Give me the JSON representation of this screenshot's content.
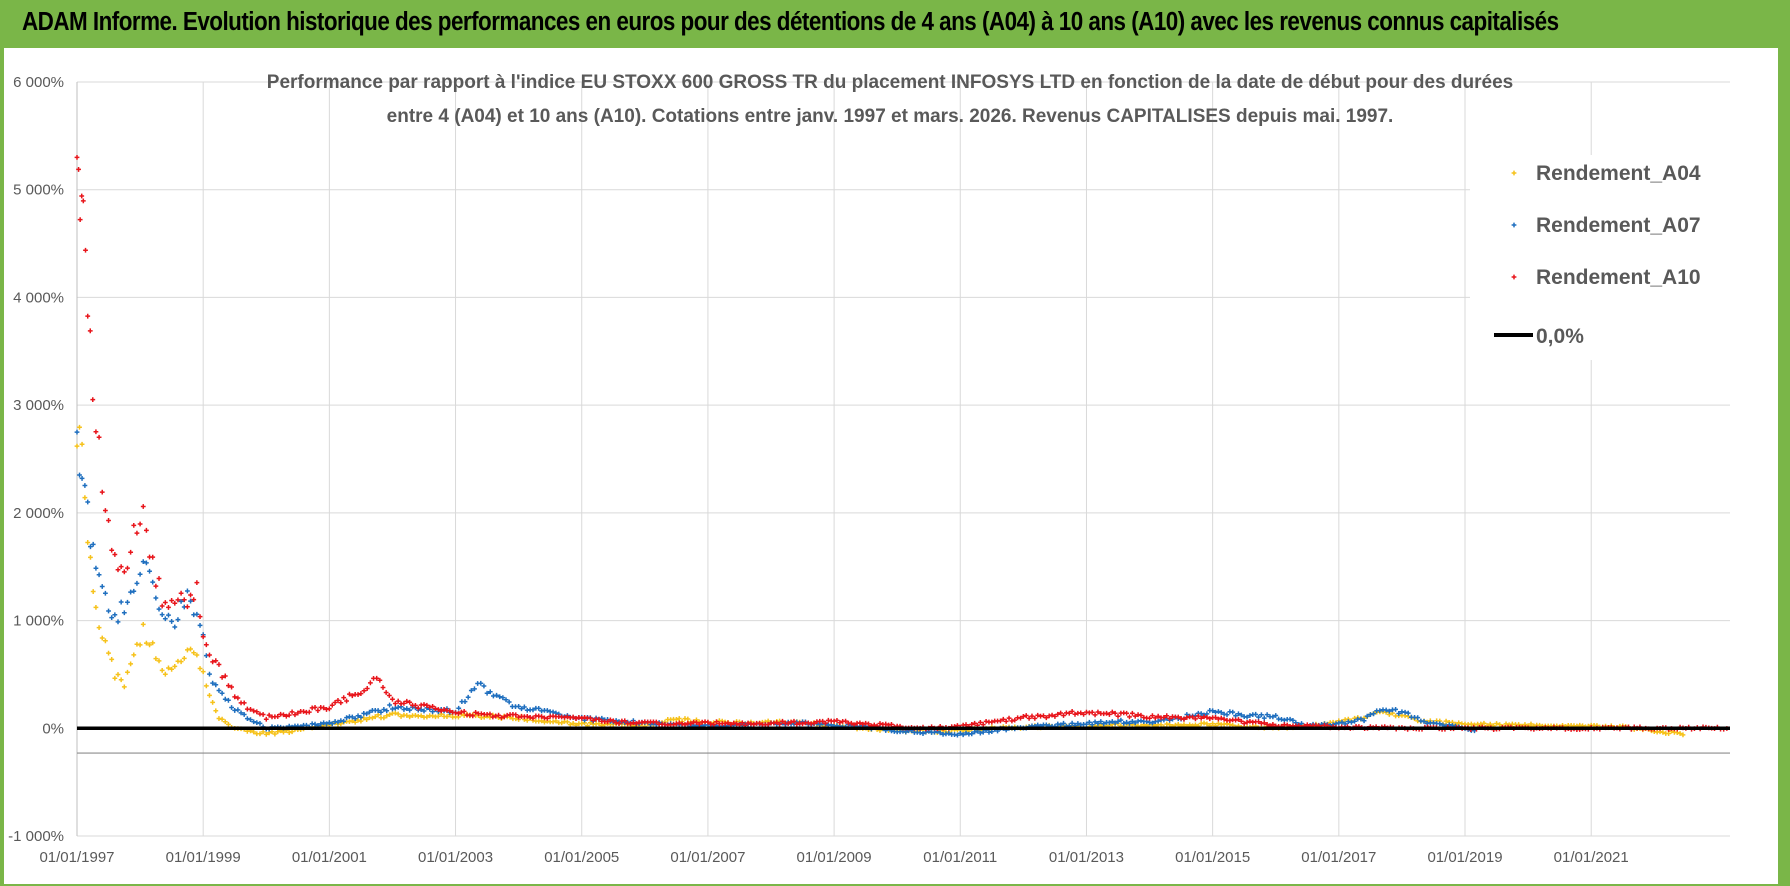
{
  "header": {
    "title": "ADAM Informe. Evolution historique des performances en euros pour des détentions de 4 ans (A04) à 10 ans (A10) avec les revenus connus capitalisés"
  },
  "colors": {
    "header_bg": "#7ab648",
    "a04": "#f6c21b",
    "a07": "#1f6fbf",
    "a10": "#e8151b",
    "zero": "#000000",
    "grid": "#d9d9d9"
  },
  "chart_data": {
    "type": "scatter",
    "title_line1": "Performance par rapport à l'indice EU STOXX 600 GROSS TR  du placement INFOSYS LTD en fonction de la date de début pour des durées",
    "title_line2": "entre 4 (A04) et 10 ans (A10).  Cotations entre janv. 1997 et mars. 2026.  Revenus CAPITALISES  depuis mai. 1997.",
    "xlabel": "",
    "ylabel": "",
    "xlim": [
      1997.0,
      2023.2
    ],
    "ylim": [
      -1000,
      6000
    ],
    "y_ticks": [
      -1000,
      0,
      1000,
      2000,
      3000,
      4000,
      5000,
      6000
    ],
    "y_tick_labels": [
      "-1 000%",
      "0%",
      "1 000%",
      "2 000%",
      "3 000%",
      "4 000%",
      "5 000%",
      "6 000%"
    ],
    "x_ticks": [
      1997,
      1999,
      2001,
      2003,
      2005,
      2007,
      2009,
      2011,
      2013,
      2015,
      2017,
      2019,
      2021
    ],
    "x_tick_labels": [
      "01/01/1997",
      "01/01/1999",
      "01/01/2001",
      "01/01/2003",
      "01/01/2005",
      "01/01/2007",
      "01/01/2009",
      "01/01/2011",
      "01/01/2013",
      "01/01/2015",
      "01/01/2017",
      "01/01/2019",
      "01/01/2021"
    ],
    "legend_position": "top-right",
    "series": [
      {
        "name": "Rendement_A04",
        "color": "#f6c21b",
        "x": [
          1997.0,
          1997.08,
          1997.17,
          1997.3,
          1997.45,
          1997.6,
          1997.75,
          1997.9,
          1998.05,
          1998.2,
          1998.35,
          1998.55,
          1998.75,
          1998.9,
          1999.0,
          1999.1,
          1999.25,
          1999.45,
          1999.7,
          2000.0,
          2000.5,
          2001.0,
          2001.5,
          2002.0,
          2002.5,
          2003.0,
          2003.5,
          2004.0,
          2004.5,
          2005.0,
          2005.5,
          2006.0,
          2006.5,
          2007.0,
          2007.5,
          2008.0,
          2008.5,
          2009.0,
          2009.5,
          2010.0,
          2010.5,
          2011.0,
          2011.5,
          2012.0,
          2012.5,
          2013.0,
          2013.5,
          2014.0,
          2014.5,
          2015.0,
          2015.5,
          2016.0,
          2016.5,
          2017.0,
          2017.4,
          2017.7,
          2018.0,
          2018.4,
          2018.8,
          2019.2,
          2019.6,
          2020.0,
          2020.5,
          2021.0,
          2021.5,
          2022.0,
          2022.5
        ],
        "values": [
          2800,
          2500,
          1800,
          1100,
          800,
          500,
          400,
          700,
          900,
          750,
          500,
          550,
          700,
          650,
          550,
          300,
          100,
          0,
          -30,
          -50,
          -20,
          40,
          80,
          130,
          110,
          120,
          110,
          100,
          60,
          40,
          30,
          30,
          80,
          60,
          50,
          60,
          50,
          20,
          0,
          -20,
          -30,
          -20,
          0,
          10,
          20,
          20,
          30,
          20,
          30,
          40,
          20,
          10,
          20,
          60,
          100,
          150,
          120,
          60,
          50,
          40,
          30,
          30,
          20,
          20,
          10,
          -20,
          -60
        ]
      },
      {
        "name": "Rendement_A07",
        "color": "#1f6fbf",
        "x": [
          1997.0,
          1997.08,
          1997.17,
          1997.3,
          1997.45,
          1997.6,
          1997.75,
          1997.9,
          1998.05,
          1998.2,
          1998.35,
          1998.55,
          1998.75,
          1998.9,
          1999.0,
          1999.1,
          1999.25,
          1999.45,
          1999.7,
          2000.0,
          2000.5,
          2001.0,
          2001.5,
          2002.0,
          2002.5,
          2003.0,
          2003.35,
          2003.6,
          2004.0,
          2004.5,
          2005.0,
          2005.5,
          2006.0,
          2006.5,
          2007.0,
          2007.5,
          2008.0,
          2008.5,
          2009.0,
          2009.5,
          2010.0,
          2010.5,
          2011.0,
          2011.5,
          2012.0,
          2012.5,
          2013.0,
          2013.5,
          2014.0,
          2014.5,
          2015.0,
          2015.5,
          2016.0,
          2016.5,
          2017.0,
          2017.4,
          2017.7,
          2018.0,
          2018.4,
          2018.8,
          2019.2
        ],
        "values": [
          2600,
          2300,
          2000,
          1400,
          1200,
          1000,
          1150,
          1300,
          1600,
          1300,
          1000,
          1000,
          1200,
          1100,
          900,
          500,
          350,
          200,
          100,
          0,
          10,
          50,
          120,
          200,
          180,
          160,
          420,
          300,
          200,
          150,
          90,
          70,
          50,
          30,
          20,
          30,
          40,
          50,
          30,
          10,
          -20,
          -40,
          -50,
          -20,
          10,
          30,
          40,
          60,
          60,
          100,
          150,
          120,
          110,
          20,
          40,
          80,
          180,
          150,
          60,
          20,
          -40
        ]
      },
      {
        "name": "Rendement_A10",
        "color": "#e8151b",
        "x": [
          1997.0,
          1997.05,
          1997.1,
          1997.17,
          1997.25,
          1997.35,
          1997.45,
          1997.55,
          1997.65,
          1997.75,
          1997.9,
          1998.05,
          1998.2,
          1998.35,
          1998.55,
          1998.75,
          1998.9,
          1999.0,
          1999.1,
          1999.25,
          1999.45,
          1999.7,
          2000.0,
          2000.5,
          2001.0,
          2001.5,
          2001.75,
          2002.0,
          2002.5,
          2003.0,
          2003.5,
          2004.0,
          2004.5,
          2005.0,
          2005.5,
          2006.0,
          2006.5,
          2007.0,
          2007.5,
          2008.0,
          2008.5,
          2009.0,
          2009.5,
          2010.0,
          2010.5,
          2011.0,
          2011.5,
          2012.0,
          2012.5,
          2013.0,
          2013.5,
          2014.0,
          2014.5,
          2015.0,
          2015.5,
          2016.0,
          2016.5,
          2017.0,
          2017.5,
          2018.0,
          2018.5,
          2019.0,
          2019.5,
          2020.0,
          2020.5,
          2021.0,
          2021.5,
          2022.0,
          2022.5,
          2023.0,
          2023.2
        ],
        "values": [
          5100,
          4900,
          4800,
          4000,
          3000,
          2600,
          2000,
          1700,
          1500,
          1400,
          1800,
          2100,
          1500,
          1200,
          1150,
          1200,
          1300,
          900,
          650,
          550,
          350,
          200,
          100,
          140,
          200,
          350,
          450,
          250,
          200,
          150,
          120,
          110,
          100,
          90,
          60,
          50,
          40,
          50,
          40,
          50,
          50,
          60,
          40,
          20,
          0,
          20,
          60,
          100,
          120,
          150,
          130,
          110,
          100,
          90,
          60,
          30,
          20,
          10,
          10,
          0,
          0,
          0,
          0,
          0,
          0,
          0,
          0,
          0,
          0,
          0,
          0
        ]
      },
      {
        "name": "0,0%",
        "color": "#000000",
        "x": [
          1997.0,
          2023.2
        ],
        "values": [
          0,
          0
        ]
      }
    ]
  }
}
